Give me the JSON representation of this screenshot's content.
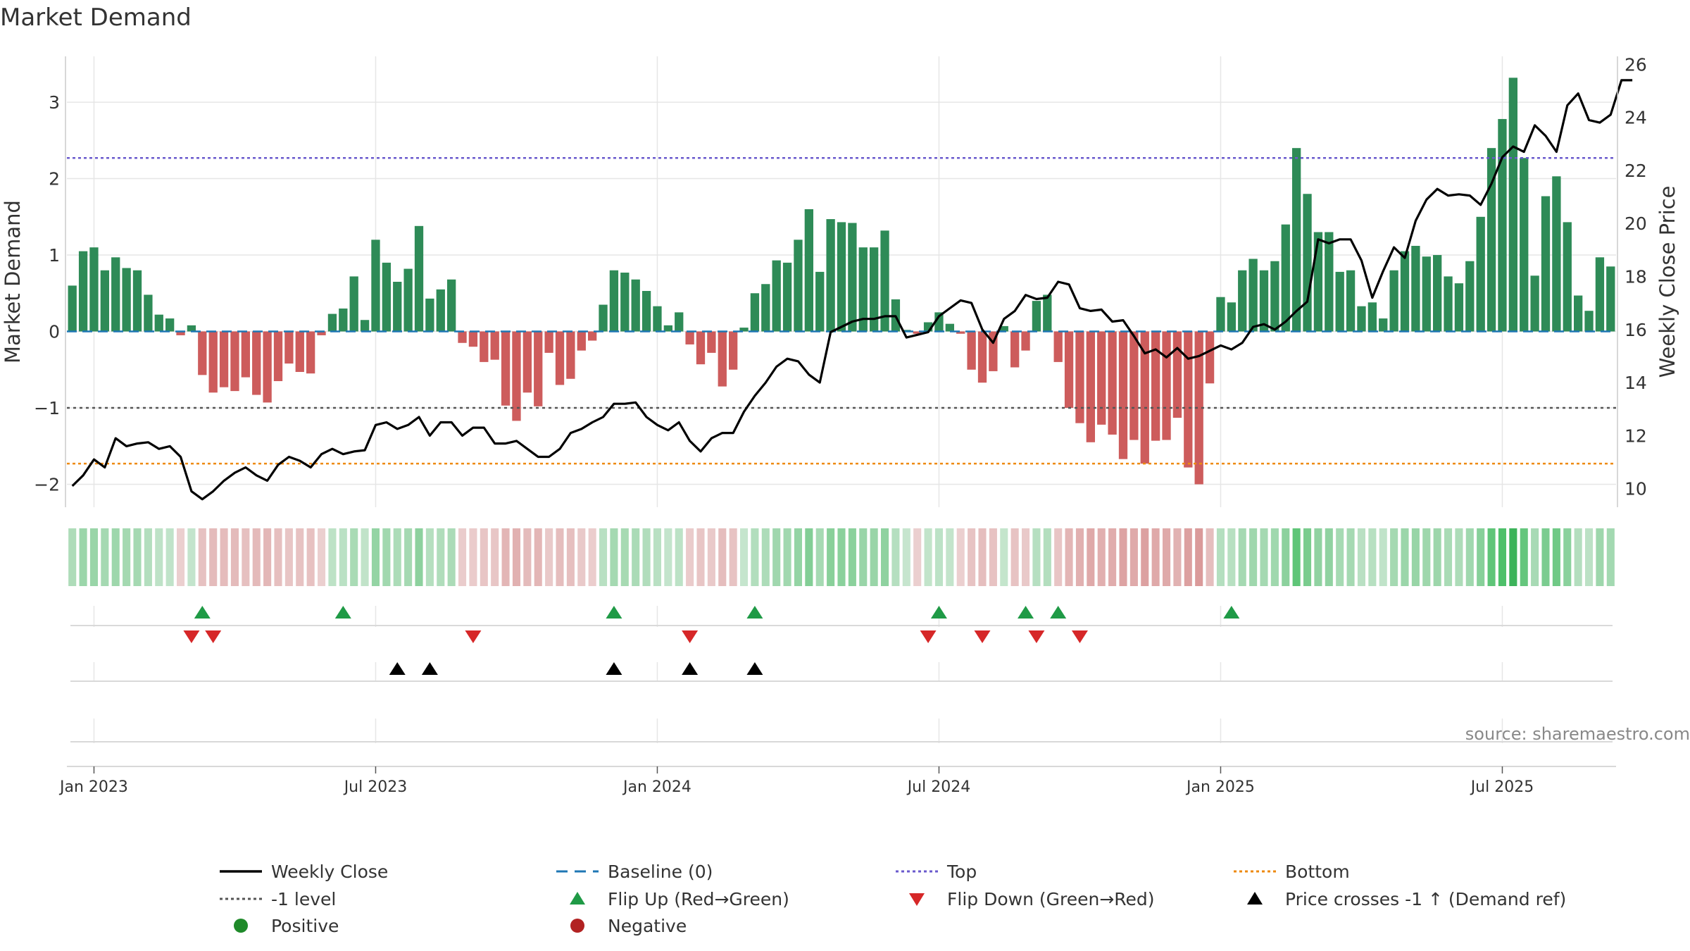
{
  "chart_data": {
    "type": "bar",
    "title": "Market Demand",
    "ylabel_left": "Market Demand",
    "ylabel_right": "Weekly Close Price",
    "source": "source: sharemaestro.com",
    "start_date": "2022-12-19",
    "ylim_left": [
      -2.3,
      3.6
    ],
    "ylim_right": [
      9.3,
      26.3
    ],
    "yticks_left": [
      3,
      2,
      1,
      0,
      -1,
      -2
    ],
    "yticks_left_labels": [
      "3",
      "2",
      "1",
      "0",
      "−1",
      "−2"
    ],
    "yticks_right": [
      26,
      24,
      22,
      20,
      18,
      16,
      14,
      12,
      10
    ],
    "xticks": [
      {
        "label": "Jan 2023",
        "week": 2
      },
      {
        "label": "Jul 2023",
        "week": 28
      },
      {
        "label": "Jan 2024",
        "week": 54
      },
      {
        "label": "Jul 2024",
        "week": 80
      },
      {
        "label": "Jan 2025",
        "week": 106
      },
      {
        "label": "Jul 2025",
        "week": 132
      }
    ],
    "reference_lines": {
      "top": 2.27,
      "bottom": -1.73,
      "minus_one": -1.0,
      "baseline": 0
    },
    "series": [
      {
        "name": "Market Demand",
        "values": [
          0.6,
          1.05,
          1.1,
          0.8,
          0.97,
          0.83,
          0.8,
          0.48,
          0.22,
          0.17,
          -0.05,
          0.08,
          -0.57,
          -0.8,
          -0.73,
          -0.78,
          -0.6,
          -0.83,
          -0.93,
          -0.65,
          -0.42,
          -0.53,
          -0.55,
          -0.05,
          0.23,
          0.3,
          0.72,
          0.15,
          1.2,
          0.9,
          0.65,
          0.82,
          1.38,
          0.43,
          0.55,
          0.68,
          -0.15,
          -0.2,
          -0.4,
          -0.37,
          -0.97,
          -1.17,
          -0.8,
          -0.98,
          -0.28,
          -0.7,
          -0.62,
          -0.25,
          -0.12,
          0.35,
          0.8,
          0.77,
          0.68,
          0.53,
          0.33,
          0.08,
          0.25,
          -0.17,
          -0.43,
          -0.28,
          -0.72,
          -0.5,
          0.05,
          0.5,
          0.62,
          0.93,
          0.9,
          1.2,
          1.6,
          0.78,
          1.47,
          1.43,
          1.42,
          1.1,
          1.1,
          1.32,
          0.42,
          0.02,
          -0.03,
          0.12,
          0.25,
          0.1,
          -0.03,
          -0.5,
          -0.67,
          -0.52,
          0.07,
          -0.47,
          -0.25,
          0.4,
          0.48,
          -0.4,
          -1.0,
          -1.2,
          -1.45,
          -1.22,
          -1.35,
          -1.67,
          -1.42,
          -1.73,
          -1.43,
          -1.42,
          -1.13,
          -1.78,
          -2.0,
          -0.68,
          0.45,
          0.38,
          0.8,
          0.95,
          0.8,
          0.92,
          1.4,
          2.4,
          1.8,
          1.3,
          1.3,
          0.78,
          0.8,
          0.33,
          0.38,
          0.17,
          0.8,
          1.05,
          1.12,
          0.98,
          1.0,
          0.72,
          0.63,
          0.92,
          1.5,
          2.4,
          2.78,
          3.32,
          2.27,
          0.73,
          1.77,
          2.03,
          1.43,
          0.47,
          0.27,
          0.97,
          0.85
        ]
      },
      {
        "name": "Weekly Close",
        "axis": "right",
        "values": [
          10.1,
          10.5,
          11.1,
          10.8,
          11.9,
          11.6,
          11.7,
          11.75,
          11.5,
          11.6,
          11.2,
          9.9,
          9.6,
          9.9,
          10.3,
          10.6,
          10.8,
          10.5,
          10.3,
          10.9,
          11.2,
          11.05,
          10.8,
          11.3,
          11.5,
          11.3,
          11.4,
          11.45,
          12.4,
          12.5,
          12.25,
          12.4,
          12.7,
          12.0,
          12.5,
          12.5,
          12.0,
          12.3,
          12.3,
          11.7,
          11.7,
          11.8,
          11.5,
          11.2,
          11.2,
          11.5,
          12.1,
          12.25,
          12.5,
          12.7,
          13.2,
          13.2,
          13.25,
          12.7,
          12.4,
          12.2,
          12.5,
          11.8,
          11.4,
          11.9,
          12.1,
          12.1,
          12.9,
          13.5,
          14.0,
          14.6,
          14.9,
          14.8,
          14.3,
          14.0,
          15.9,
          16.1,
          16.3,
          16.4,
          16.4,
          16.5,
          16.5,
          15.7,
          15.8,
          15.9,
          16.5,
          16.8,
          17.1,
          17.0,
          16.0,
          15.5,
          16.4,
          16.7,
          17.3,
          17.15,
          17.2,
          17.8,
          17.7,
          16.8,
          16.7,
          16.75,
          16.3,
          16.35,
          15.75,
          15.1,
          15.25,
          14.95,
          15.3,
          14.9,
          15.0,
          15.2,
          15.4,
          15.25,
          15.5,
          16.1,
          16.2,
          16.0,
          16.3,
          16.7,
          17.05,
          19.4,
          19.25,
          19.4,
          19.4,
          18.6,
          17.2,
          18.2,
          19.1,
          18.7,
          20.1,
          20.9,
          21.3,
          21.05,
          21.1,
          21.05,
          20.7,
          21.5,
          22.5,
          22.9,
          22.7,
          23.7,
          23.3,
          22.7,
          24.45,
          24.9,
          23.9,
          23.8,
          24.1,
          25.4,
          25.4
        ]
      }
    ],
    "markers": {
      "flip_up_weeks": [
        12,
        25,
        50,
        63,
        80,
        88,
        91,
        107
      ],
      "flip_down_weeks": [
        11,
        13,
        37,
        57,
        79,
        84,
        89,
        93
      ],
      "price_cross_weeks": [
        30,
        33,
        50,
        57,
        63
      ]
    },
    "legend": [
      {
        "label": "Weekly Close",
        "symbol": "line",
        "color": "#000000"
      },
      {
        "label": "Baseline (0)",
        "symbol": "dash",
        "color": "#1f77b4"
      },
      {
        "label": "Top",
        "symbol": "dotted",
        "color": "#6a5acd"
      },
      {
        "label": "Bottom",
        "symbol": "dotted",
        "color": "#ee8a10"
      },
      {
        "label": "-1 level",
        "symbol": "dotted",
        "color": "#555555"
      },
      {
        "label": "Flip Up (Red→Green)",
        "symbol": "tri-up",
        "color": "#1f9a46"
      },
      {
        "label": "Flip Down (Green→Red)",
        "symbol": "tri-down",
        "color": "#d62728"
      },
      {
        "label": "Price crosses -1 ↑ (Demand ref)",
        "symbol": "tri-up",
        "color": "#000000"
      },
      {
        "label": "Positive",
        "symbol": "circle",
        "color": "#1f8a2a"
      },
      {
        "label": "Negative",
        "symbol": "circle",
        "color": "#b22222"
      }
    ],
    "colors": {
      "positive_bar": "#2e8b57",
      "negative_bar": "#cd5c5c",
      "close_line": "#000000",
      "grid": "#e6e6e6",
      "axis": "#cccccc",
      "source_text": "#888888"
    }
  }
}
